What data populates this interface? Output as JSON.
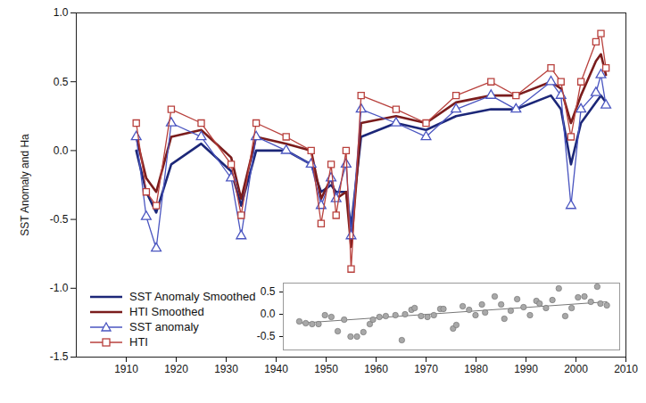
{
  "chart_data": [
    {
      "type": "line",
      "ylabel": "SST Anomaly and Ha",
      "xlim": [
        1900,
        2010
      ],
      "xticks": [
        1910,
        1920,
        1930,
        1940,
        1950,
        1960,
        1970,
        1980,
        1990,
        2000,
        2010
      ],
      "ylim": [
        -1.5,
        1.0
      ],
      "yticks": [
        -1.5,
        {
          "value": -1,
          "label": "-1.0"
        },
        -0.5,
        {
          "value": 0,
          "label": "0.0"
        },
        0.5,
        {
          "value": 1,
          "label": "1.0"
        }
      ],
      "grid": false,
      "legend": "lower left",
      "x": [
        1912,
        1914,
        1916,
        1919,
        1925,
        1931,
        1933,
        1936,
        1942,
        1947,
        1949,
        1951,
        1952,
        1954,
        1955,
        1957,
        1964,
        1970,
        1976,
        1983,
        1988,
        1995,
        1997,
        1999,
        2001,
        2004,
        2005,
        2006
      ],
      "series": [
        {
          "name": "SST Anomaly Smoothed",
          "color": "#1c2778",
          "line_style": "solid",
          "values": [
            0.0,
            -0.3,
            -0.45,
            -0.1,
            0.05,
            -0.15,
            -0.4,
            0.0,
            0.0,
            -0.1,
            -0.3,
            -0.25,
            -0.3,
            -0.3,
            -0.55,
            0.1,
            0.2,
            0.15,
            0.25,
            0.3,
            0.3,
            0.4,
            0.3,
            -0.1,
            0.2,
            0.35,
            0.4,
            0.35
          ]
        },
        {
          "name": "HTI Smoothed",
          "color": "#7a1c1c",
          "line_style": "solid",
          "values": [
            0.1,
            -0.2,
            -0.3,
            0.1,
            0.15,
            -0.05,
            -0.35,
            0.1,
            0.05,
            0.0,
            -0.35,
            -0.2,
            -0.35,
            -0.3,
            -0.7,
            0.2,
            0.25,
            0.2,
            0.35,
            0.4,
            0.4,
            0.5,
            0.45,
            0.2,
            0.4,
            0.65,
            0.7,
            0.55
          ]
        },
        {
          "name": "SST anomaly",
          "color": "#4a55c0",
          "line_style": "solid",
          "marker": "triangle",
          "values": [
            0.1,
            -0.48,
            -0.71,
            0.2,
            0.1,
            -0.2,
            -0.62,
            0.1,
            0.0,
            -0.1,
            -0.4,
            -0.2,
            -0.35,
            -0.1,
            -0.62,
            0.3,
            0.2,
            0.1,
            0.3,
            0.4,
            0.3,
            0.5,
            0.4,
            -0.4,
            0.3,
            0.42,
            0.55,
            0.33
          ]
        },
        {
          "name": "HTI",
          "color": "#b8403c",
          "line_style": "solid",
          "marker": "square",
          "values": [
            0.2,
            -0.3,
            -0.4,
            0.3,
            0.2,
            -0.1,
            -0.47,
            0.2,
            0.1,
            0.0,
            -0.53,
            -0.1,
            -0.47,
            0.0,
            -0.86,
            0.4,
            0.3,
            0.2,
            0.4,
            0.5,
            0.4,
            0.6,
            0.5,
            0.1,
            0.5,
            0.79,
            0.85,
            0.6
          ]
        }
      ]
    },
    {
      "type": "scatter",
      "xlim": [
        1905,
        2010
      ],
      "ylim": [
        -0.8,
        0.7
      ],
      "yticks": [
        -0.5,
        {
          "value": 0,
          "label": "0.0"
        },
        0.5
      ],
      "tick_labels": "y",
      "color": "#a8a8a8",
      "marker": "circle",
      "x": [
        1910,
        1912,
        1914,
        1916,
        1918,
        1920,
        1922,
        1924,
        1926,
        1928,
        1930,
        1932,
        1933,
        1935,
        1937,
        1940,
        1942,
        1943,
        1945,
        1946,
        1948,
        1950,
        1952,
        1954,
        1955,
        1958,
        1959,
        1961,
        1963,
        1965,
        1967,
        1968,
        1971,
        1973,
        1974,
        1976,
        1978,
        1980,
        1982,
        1984,
        1985,
        1987,
        1989,
        1991,
        1993,
        1995,
        1997,
        1999,
        2001,
        2003,
        2004,
        2006
      ],
      "values": [
        -0.16,
        -0.2,
        -0.22,
        -0.22,
        -0.02,
        -0.06,
        -0.38,
        -0.12,
        -0.5,
        -0.5,
        -0.4,
        -0.22,
        -0.12,
        -0.06,
        -0.04,
        -0.02,
        -0.58,
        0.0,
        0.1,
        0.14,
        -0.04,
        -0.06,
        -0.02,
        0.12,
        0.12,
        -0.32,
        -0.24,
        0.18,
        0.1,
        -0.02,
        0.22,
        0.04,
        0.4,
        0.22,
        -0.1,
        0.08,
        0.34,
        0.16,
        -0.02,
        0.3,
        0.24,
        0.14,
        0.32,
        0.58,
        -0.04,
        0.14,
        0.38,
        0.4,
        0.28,
        0.62,
        0.24,
        0.2
      ],
      "trend": {
        "x": [
          1910,
          2006
        ],
        "values": [
          -0.2,
          0.28
        ]
      }
    }
  ]
}
